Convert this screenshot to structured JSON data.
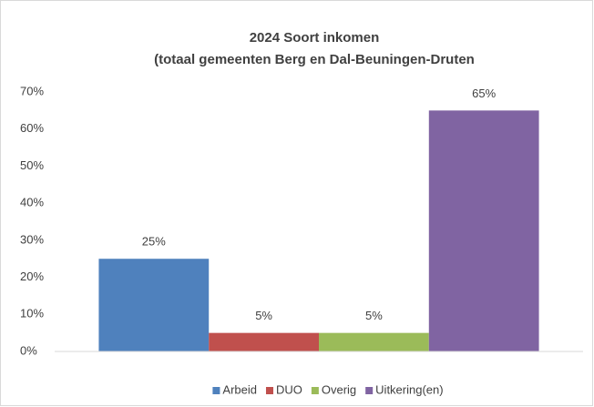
{
  "chart_data": {
    "type": "bar",
    "title": "2024 Soort inkomen",
    "subtitle": "(totaal gemeenten Berg en Dal-Beuningen-Druten",
    "categories": [
      null
    ],
    "series": [
      {
        "name": "Arbeid",
        "color": "#4f81bd",
        "values": [
          25
        ],
        "value_labels": [
          "25%"
        ]
      },
      {
        "name": "DUO",
        "color": "#c0504d",
        "values": [
          5
        ],
        "value_labels": [
          "5%"
        ]
      },
      {
        "name": "Overig",
        "color": "#9bbb59",
        "values": [
          5
        ],
        "value_labels": [
          "5%"
        ]
      },
      {
        "name": "Uitkering(en)",
        "color": "#8064a2",
        "values": [
          65
        ],
        "value_labels": [
          "65%"
        ]
      }
    ],
    "ylim": [
      0,
      70
    ],
    "yticks": [
      {
        "value": 0,
        "label": "0%"
      },
      {
        "value": 10,
        "label": "10%"
      },
      {
        "value": 20,
        "label": "20%"
      },
      {
        "value": 30,
        "label": "30%"
      },
      {
        "value": 40,
        "label": "40%"
      },
      {
        "value": 50,
        "label": "50%"
      },
      {
        "value": 60,
        "label": "60%"
      },
      {
        "value": 70,
        "label": "70%"
      }
    ],
    "grid": false,
    "legend": "bottom"
  }
}
